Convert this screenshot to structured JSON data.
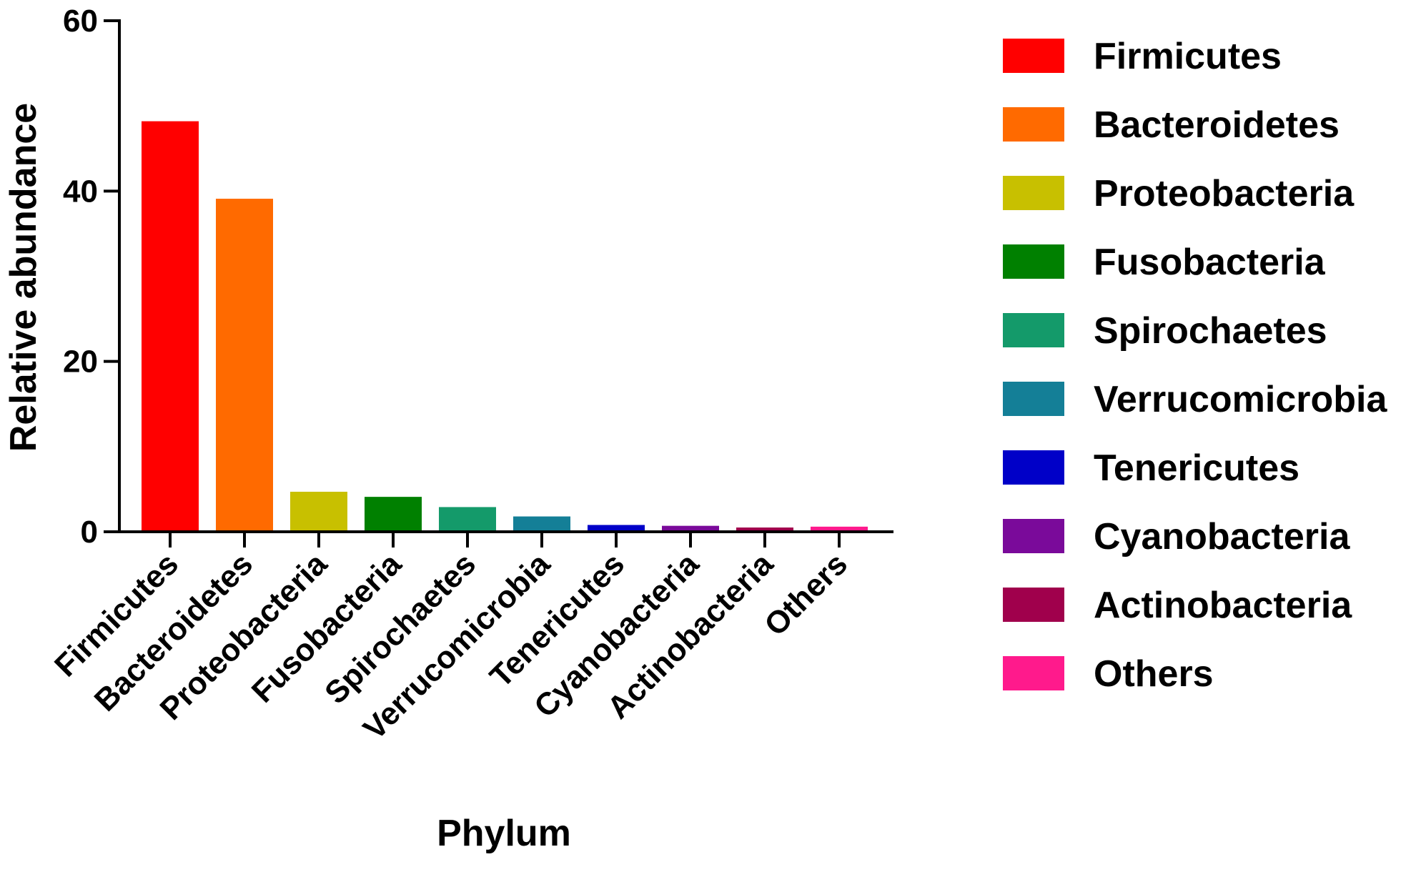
{
  "chart_data": {
    "type": "bar",
    "categories": [
      "Firmicutes",
      "Bacteroidetes",
      "Proteobacteria",
      "Fusobacteria",
      "Spirochaetes",
      "Verrucomicrobia",
      "Tenericutes",
      "Cyanobacteria",
      "Actinobacteria",
      "Others"
    ],
    "values": [
      48.2,
      39.1,
      4.7,
      4.1,
      2.9,
      1.8,
      0.8,
      0.7,
      0.5,
      0.6
    ],
    "colors": [
      "#ff0000",
      "#ff6a00",
      "#c8c000",
      "#008000",
      "#149a6a",
      "#147f97",
      "#0000c8",
      "#7a0a9a",
      "#a0004c",
      "#ff1a8c"
    ],
    "title": "",
    "xlabel": "Phylum",
    "ylabel": "Relative abundance",
    "ylim": [
      0,
      60
    ],
    "yticks": [
      0,
      20,
      40,
      60
    ],
    "grid": false,
    "legend": {
      "placement": "right",
      "entries": [
        "Firmicutes",
        "Bacteroidetes",
        "Proteobacteria",
        "Fusobacteria",
        "Spirochaetes",
        "Verrucomicrobia",
        "Tenericutes",
        "Cyanobacteria",
        "Actinobacteria",
        "Others"
      ]
    }
  }
}
